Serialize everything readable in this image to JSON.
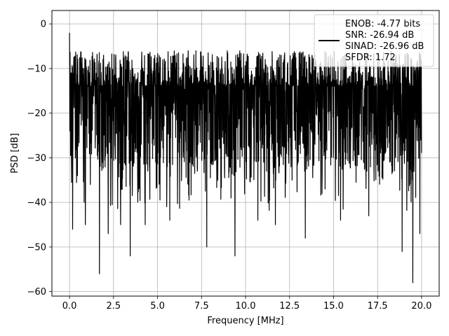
{
  "chart_data": {
    "type": "line",
    "title": "",
    "xlabel": "Frequency [MHz]",
    "ylabel": "PSD [dB]",
    "xlim": [
      -1,
      21
    ],
    "ylim": [
      -61,
      3
    ],
    "grid": true,
    "x_ticks": [
      0.0,
      2.5,
      5.0,
      7.5,
      10.0,
      12.5,
      15.0,
      17.5,
      20.0
    ],
    "x_tick_labels": [
      "0.0",
      "2.5",
      "5.0",
      "7.5",
      "10.0",
      "12.5",
      "15.0",
      "17.5",
      "20.0"
    ],
    "y_ticks": [
      0,
      -10,
      -20,
      -30,
      -40,
      -50,
      -60
    ],
    "y_tick_labels": [
      "0",
      "−10",
      "−20",
      "−30",
      "−40",
      "−50",
      "−60"
    ],
    "legend_position": "top-right",
    "legend_entries": [
      "ENOB: -4.77 bits",
      "SNR: -26.94 dB",
      "SINAD: -26.96 dB",
      "SFDR: 1.72"
    ],
    "series": [
      {
        "color": "#000000",
        "x_range": [
          0,
          20
        ],
        "num_points": 2048,
        "dc_peak": {
          "x": 0.0,
          "y": -2
        },
        "noise_floor_mean_db": -22,
        "noise_band_db": [
          -32,
          -14
        ],
        "noise_max_db": -6,
        "deep_minima": [
          {
            "x": 0.18,
            "y": -46
          },
          {
            "x": 0.9,
            "y": -45
          },
          {
            "x": 1.7,
            "y": -56
          },
          {
            "x": 2.2,
            "y": -47
          },
          {
            "x": 2.9,
            "y": -45
          },
          {
            "x": 3.45,
            "y": -52
          },
          {
            "x": 4.3,
            "y": -45
          },
          {
            "x": 5.7,
            "y": -44
          },
          {
            "x": 7.8,
            "y": -50
          },
          {
            "x": 9.4,
            "y": -52
          },
          {
            "x": 10.7,
            "y": -44
          },
          {
            "x": 11.7,
            "y": -45
          },
          {
            "x": 13.4,
            "y": -48
          },
          {
            "x": 15.4,
            "y": -44
          },
          {
            "x": 17.0,
            "y": -43
          },
          {
            "x": 18.9,
            "y": -51
          },
          {
            "x": 19.5,
            "y": -58
          },
          {
            "x": 19.9,
            "y": -47
          }
        ]
      }
    ]
  }
}
